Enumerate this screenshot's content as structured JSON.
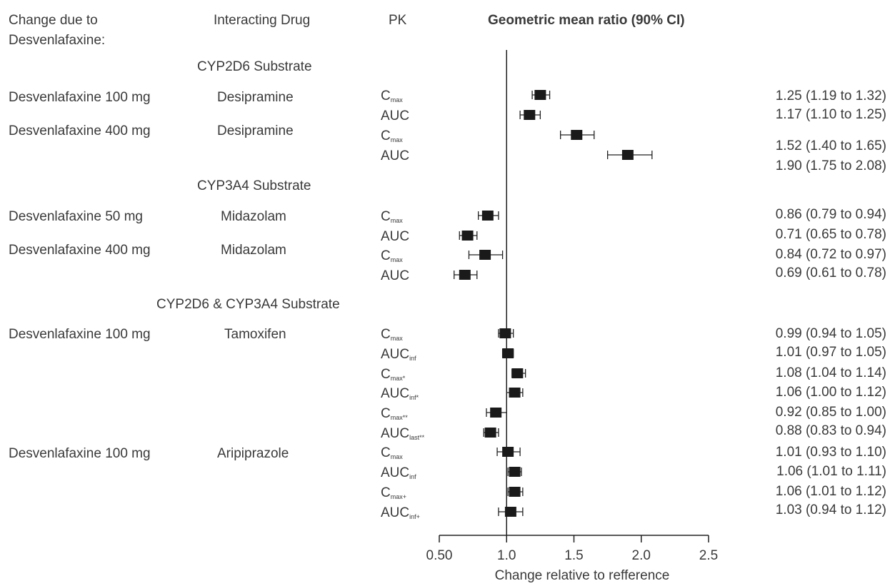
{
  "headers": {
    "change_line1": "Change due to",
    "change_line2": "Desvenlafaxine:",
    "interacting": "Interacting Drug",
    "pk": "PK",
    "gmr": "Geometric mean ratio (90% CI)"
  },
  "sections": [
    {
      "label": "CYP2D6 Substrate"
    },
    {
      "label": "CYP3A4 Substrate"
    },
    {
      "label": "CYP2D6 & CYP3A4 Substrate"
    }
  ],
  "groups": [
    {
      "change": "Desvenlafaxine 100 mg",
      "drug": "Desipramine"
    },
    {
      "change": "Desvenlafaxine 400 mg",
      "drug": "Desipramine"
    },
    {
      "change": "Desvenlafaxine 50 mg",
      "drug": "Midazolam"
    },
    {
      "change": "Desvenlafaxine 400 mg",
      "drug": "Midazolam"
    },
    {
      "change": "Desvenlafaxine 100 mg",
      "drug": "Tamoxifen"
    },
    {
      "change": "Desvenlafaxine 100 mg",
      "drug": "Aripiprazole"
    }
  ],
  "pk_labels": [
    {
      "main": "C",
      "sub": "max"
    },
    {
      "main": "AUC",
      "sub": ""
    },
    {
      "main": "C",
      "sub": "max"
    },
    {
      "main": "AUC",
      "sub": ""
    },
    {
      "main": "C",
      "sub": "max"
    },
    {
      "main": "AUC",
      "sub": ""
    },
    {
      "main": "C",
      "sub": "max"
    },
    {
      "main": "AUC",
      "sub": ""
    },
    {
      "main": "C",
      "sub": "max"
    },
    {
      "main": "AUC",
      "sub": "inf"
    },
    {
      "main": "C",
      "sub": "max*"
    },
    {
      "main": "AUC",
      "sub": "inf*"
    },
    {
      "main": "C",
      "sub": "max**"
    },
    {
      "main": "AUC",
      "sub": "last**"
    },
    {
      "main": "C",
      "sub": "max"
    },
    {
      "main": "AUC",
      "sub": "inf"
    },
    {
      "main": "C",
      "sub": "max+"
    },
    {
      "main": "AUC",
      "sub": "inf+"
    }
  ],
  "ci_labels": [
    "1.25 (1.19 to 1.32)",
    "1.17 (1.10 to 1.25)",
    "1.52 (1.40 to 1.65)",
    "1.90 (1.75 to 2.08)",
    "0.86 (0.79 to 0.94)",
    "0.71 (0.65 to 0.78)",
    "0.84 (0.72 to 0.97)",
    "0.69 (0.61 to 0.78)",
    "0.99 (0.94 to 1.05)",
    "1.01 (0.97 to 1.05)",
    "1.08 (1.04 to 1.14)",
    "1.06 (1.00 to 1.12)",
    "0.92 (0.85 to 1.00)",
    "0.88 (0.83 to 0.94)",
    "1.01 (0.93 to 1.10)",
    "1.06 (1.01 to 1.11)",
    "1.06 (1.01 to 1.12)",
    "1.03 (0.94 to 1.12)"
  ],
  "chart_data": {
    "type": "scatter",
    "title": "",
    "xlabel": "Change relative to refference",
    "ylabel": "",
    "xlim": [
      0.5,
      2.5
    ],
    "reference_line": 1.0,
    "x_ticks": [
      0.5,
      1.0,
      1.5,
      2.0,
      2.5
    ],
    "x_tick_labels": [
      "0.50",
      "1.0",
      "1.5",
      "2.0",
      "2.5"
    ],
    "series": [
      {
        "points": [
          {
            "estimate": 1.25,
            "lower": 1.19,
            "upper": 1.32
          },
          {
            "estimate": 1.17,
            "lower": 1.1,
            "upper": 1.25
          },
          {
            "estimate": 1.52,
            "lower": 1.4,
            "upper": 1.65
          },
          {
            "estimate": 1.9,
            "lower": 1.75,
            "upper": 2.08
          },
          {
            "estimate": 0.86,
            "lower": 0.79,
            "upper": 0.94
          },
          {
            "estimate": 0.71,
            "lower": 0.65,
            "upper": 0.78
          },
          {
            "estimate": 0.84,
            "lower": 0.72,
            "upper": 0.97
          },
          {
            "estimate": 0.69,
            "lower": 0.61,
            "upper": 0.78
          },
          {
            "estimate": 0.99,
            "lower": 0.94,
            "upper": 1.05
          },
          {
            "estimate": 1.01,
            "lower": 0.97,
            "upper": 1.05
          },
          {
            "estimate": 1.08,
            "lower": 1.04,
            "upper": 1.14
          },
          {
            "estimate": 1.06,
            "lower": 1.0,
            "upper": 1.12
          },
          {
            "estimate": 0.92,
            "lower": 0.85,
            "upper": 1.0
          },
          {
            "estimate": 0.88,
            "lower": 0.83,
            "upper": 0.94
          },
          {
            "estimate": 1.01,
            "lower": 0.93,
            "upper": 1.1
          },
          {
            "estimate": 1.06,
            "lower": 1.01,
            "upper": 1.11
          },
          {
            "estimate": 1.06,
            "lower": 1.01,
            "upper": 1.12
          },
          {
            "estimate": 1.03,
            "lower": 0.94,
            "upper": 1.12
          }
        ]
      }
    ],
    "grid": false,
    "marker_color": "#1a1a1a"
  }
}
